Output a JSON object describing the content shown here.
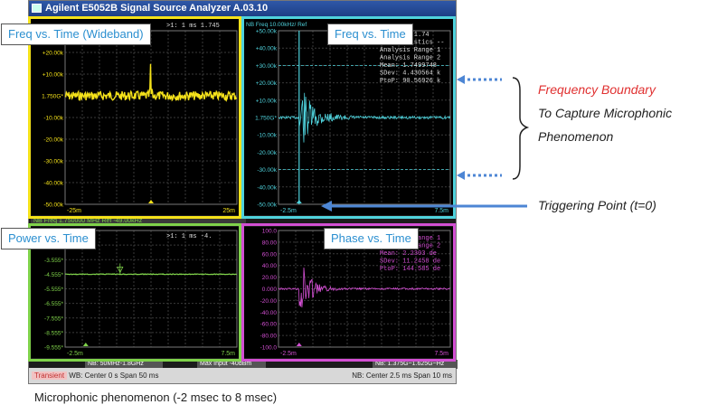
{
  "window": {
    "title": "Agilent E5052B Signal Source Analyzer A.03.10"
  },
  "panes": {
    "freq_wide": {
      "callout": "Freq vs. Time (Wideband)",
      "marker": ">1:  1 ms  1.745",
      "yticks": [
        "+30.00k",
        "+20.00k",
        "+10.00k",
        "1.750G*",
        "-10.00k",
        "-20.00k",
        "-30.00k",
        "-40.00k",
        "-50.00k"
      ],
      "x_left": "-25m",
      "x_right": "25m",
      "sub": "NB Freq 1.750000 MHz Ref -49.00kHz"
    },
    "freq": {
      "callout": "Freq vs. Time",
      "header": "NB Freq 10.00kHz/ Ref",
      "yticks": [
        "+50.00k",
        "+40.00k",
        "+30.00k",
        "+20.00k",
        "+10.00k",
        "1.750G*",
        "-10.00k",
        "-20.00k",
        "-30.00k",
        "-40.00k",
        "-50.00k"
      ],
      "stats": [
        ">1:  1 ms  1.74",
        "--- Statistics --",
        "Analysis Range 1",
        "Analysis Range 2",
        "Mean: 1.7499748",
        "SDev: 4.430564 k",
        "PtoP: 90.56926 k"
      ],
      "x_left": "-2.5m",
      "x_right": "7.5m"
    },
    "power": {
      "callout": "Power vs. Time",
      "marker": ">1:  1 ms  -4.",
      "yticks": [
        "-1.555*",
        "-2.555*",
        "-3.555*",
        "-4.555*",
        "-5.555*",
        "-6.555*",
        "-7.555*",
        "-8.555*",
        "-9.555*"
      ],
      "x_left": "-2.5m",
      "x_right": "7.5m",
      "sub": "NB: 50MHz-1.8GHz",
      "sub2": "Max Input -40dBm"
    },
    "phase": {
      "callout": "Phase vs. Time",
      "yticks": [
        "100.0",
        "80.00",
        "60.00",
        "40.00",
        "20.00",
        "0.000",
        "-20.00",
        "-40.00",
        "-60.00",
        "-80.00",
        "-100.0"
      ],
      "stats": [
        "Analysis Range 1",
        "Analysis Range 2",
        "Mean: 2.2303 de",
        "SDev: 11.2458 de",
        "PtoP: 144.585 de"
      ],
      "x_left": "-2.5m",
      "x_right": "7.5m",
      "sub": "NB: 1.375G~1.625G~Hz"
    }
  },
  "statusbar": {
    "transient": "Transient",
    "left": "WB: Center 0 s  Span 50 ms",
    "right": "NB: Center 2.5 ms  Span 10 ms"
  },
  "annotations": {
    "freq_boundary": "Frequency Boundary",
    "line2": "To Capture Microphonic",
    "line3": "Phenomenon",
    "trigger": "Triggering Point (t=0)"
  },
  "caption": "Microphonic phenomenon (-2 msec to 8 msec)",
  "colors": {
    "yellow": "#f5e21a",
    "cyan": "#4fd2dc",
    "green": "#7fd24a",
    "magenta": "#d34fd3",
    "callout_text": "#2b8fd0",
    "red_text": "#e03030",
    "arrow": "#4d86d4"
  }
}
